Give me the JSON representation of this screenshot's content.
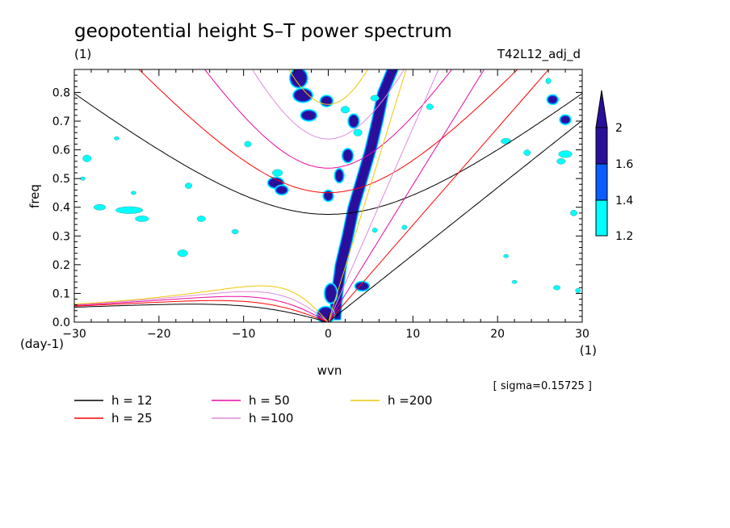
{
  "chart_data": {
    "type": "heatmap",
    "title": "geopotential height S–T power spectrum",
    "subtitle_left": "(1)",
    "subtitle_right": "T42L12_adj_d",
    "xlabel": "wvn",
    "ylabel": "freq",
    "x_unit": "(1)",
    "y_unit": "(day-1)",
    "xlim": [
      -30,
      30
    ],
    "ylim": [
      0,
      0.88
    ],
    "x_ticks": [
      -30,
      -20,
      -10,
      0,
      10,
      20,
      30
    ],
    "y_ticks": [
      0,
      0.1,
      0.2,
      0.3,
      0.4,
      0.5,
      0.6,
      0.7,
      0.8
    ],
    "x_tick_labels": [
      "−30",
      "−20",
      "−10",
      "0",
      "10",
      "20",
      "30"
    ],
    "y_tick_labels": [
      "0.0",
      "0.1",
      "0.2",
      "0.3",
      "0.4",
      "0.5",
      "0.6",
      "0.7",
      "0.8"
    ],
    "sigma_note": "[ sigma=0.15725 ]",
    "colorbar": {
      "levels": [
        1.2,
        1.4,
        1.6,
        2
      ],
      "labels": [
        "1.2",
        "1.4",
        "1.6",
        "2"
      ],
      "colors": [
        "#00ffff",
        "#0b5dff",
        "#2a0f9a"
      ]
    },
    "dispersion_curves": [
      {
        "name": "h = 12",
        "h": 12,
        "color": "#000000"
      },
      {
        "name": "h = 25",
        "h": 25,
        "color": "#ff0000"
      },
      {
        "name": "h = 50",
        "h": 50,
        "color": "#e60aa0"
      },
      {
        "name": "h =100",
        "h": 100,
        "color": "#dc8cdc"
      },
      {
        "name": "h =200",
        "h": 200,
        "color": "#f0c800"
      }
    ],
    "features": [
      {
        "kind": "kelvin_ridge",
        "level": 2,
        "points": [
          [
            0.8,
            0.01
          ],
          [
            1.0,
            0.09
          ],
          [
            1.5,
            0.2
          ],
          [
            2.3,
            0.3
          ],
          [
            3.0,
            0.4
          ],
          [
            4.0,
            0.5
          ],
          [
            5.0,
            0.6
          ],
          [
            5.8,
            0.7
          ],
          [
            6.5,
            0.8
          ],
          [
            7.6,
            0.88
          ]
        ],
        "width": 1.2
      },
      {
        "kind": "blob",
        "level": 2,
        "x": -0.3,
        "y": 0.025,
        "rx": 0.9,
        "ry": 0.025
      },
      {
        "kind": "blob",
        "level": 2,
        "x": 0.3,
        "y": 0.1,
        "rx": 0.6,
        "ry": 0.03
      },
      {
        "kind": "blob",
        "level": 2,
        "x": 4.0,
        "y": 0.125,
        "rx": 0.7,
        "ry": 0.012
      },
      {
        "kind": "blob",
        "level": 2,
        "x": -3.5,
        "y": 0.85,
        "rx": 0.9,
        "ry": 0.03
      },
      {
        "kind": "blob",
        "level": 2,
        "x": -3.0,
        "y": 0.79,
        "rx": 1.0,
        "ry": 0.02
      },
      {
        "kind": "blob",
        "level": 2,
        "x": -0.2,
        "y": 0.77,
        "rx": 0.6,
        "ry": 0.015
      },
      {
        "kind": "blob",
        "level": 2,
        "x": -2.3,
        "y": 0.72,
        "rx": 0.8,
        "ry": 0.015
      },
      {
        "kind": "blob",
        "level": 2,
        "x": 3.0,
        "y": 0.7,
        "rx": 0.5,
        "ry": 0.02
      },
      {
        "kind": "blob",
        "level": 2,
        "x": 2.3,
        "y": 0.58,
        "rx": 0.5,
        "ry": 0.02
      },
      {
        "kind": "blob",
        "level": 2,
        "x": 1.3,
        "y": 0.51,
        "rx": 0.4,
        "ry": 0.02
      },
      {
        "kind": "blob",
        "level": 2,
        "x": 0.0,
        "y": 0.44,
        "rx": 0.45,
        "ry": 0.015
      },
      {
        "kind": "blob",
        "level": 2,
        "x": -6.2,
        "y": 0.485,
        "rx": 0.8,
        "ry": 0.015
      },
      {
        "kind": "blob",
        "level": 2,
        "x": -5.5,
        "y": 0.46,
        "rx": 0.6,
        "ry": 0.012
      },
      {
        "kind": "blob",
        "level": 2,
        "x": 26.5,
        "y": 0.775,
        "rx": 0.5,
        "ry": 0.012
      },
      {
        "kind": "blob",
        "level": 2,
        "x": 28.0,
        "y": 0.705,
        "rx": 0.5,
        "ry": 0.012
      },
      {
        "kind": "blob",
        "level": 1.2,
        "x": -23.5,
        "y": 0.39,
        "rx": 1.6,
        "ry": 0.012
      },
      {
        "kind": "blob",
        "level": 1.2,
        "x": -22.0,
        "y": 0.36,
        "rx": 0.8,
        "ry": 0.01
      },
      {
        "kind": "blob",
        "level": 1.2,
        "x": -27.0,
        "y": 0.4,
        "rx": 0.7,
        "ry": 0.01
      },
      {
        "kind": "blob",
        "level": 1.2,
        "x": -28.5,
        "y": 0.57,
        "rx": 0.5,
        "ry": 0.012
      },
      {
        "kind": "blob",
        "level": 1.2,
        "x": -17.2,
        "y": 0.24,
        "rx": 0.6,
        "ry": 0.012
      },
      {
        "kind": "blob",
        "level": 1.2,
        "x": -16.5,
        "y": 0.475,
        "rx": 0.4,
        "ry": 0.01
      },
      {
        "kind": "blob",
        "level": 1.2,
        "x": -6.0,
        "y": 0.52,
        "rx": 0.6,
        "ry": 0.012
      },
      {
        "kind": "blob",
        "level": 1.2,
        "x": -9.5,
        "y": 0.62,
        "rx": 0.4,
        "ry": 0.01
      },
      {
        "kind": "blob",
        "level": 1.2,
        "x": -11.0,
        "y": 0.315,
        "rx": 0.4,
        "ry": 0.008
      },
      {
        "kind": "blob",
        "level": 1.2,
        "x": -15.0,
        "y": 0.36,
        "rx": 0.5,
        "ry": 0.01
      },
      {
        "kind": "blob",
        "level": 1.2,
        "x": 2.0,
        "y": 0.74,
        "rx": 0.5,
        "ry": 0.012
      },
      {
        "kind": "blob",
        "level": 1.2,
        "x": 3.5,
        "y": 0.66,
        "rx": 0.5,
        "ry": 0.012
      },
      {
        "kind": "blob",
        "level": 1.2,
        "x": 5.5,
        "y": 0.78,
        "rx": 0.5,
        "ry": 0.01
      },
      {
        "kind": "blob",
        "level": 1.2,
        "x": 12.0,
        "y": 0.75,
        "rx": 0.4,
        "ry": 0.01
      },
      {
        "kind": "blob",
        "level": 1.2,
        "x": 21.0,
        "y": 0.63,
        "rx": 0.6,
        "ry": 0.01
      },
      {
        "kind": "blob",
        "level": 1.2,
        "x": 23.5,
        "y": 0.59,
        "rx": 0.4,
        "ry": 0.01
      },
      {
        "kind": "blob",
        "level": 1.2,
        "x": 26.0,
        "y": 0.84,
        "rx": 0.3,
        "ry": 0.01
      },
      {
        "kind": "blob",
        "level": 1.2,
        "x": 28.0,
        "y": 0.585,
        "rx": 0.8,
        "ry": 0.012
      },
      {
        "kind": "blob",
        "level": 1.2,
        "x": 27.5,
        "y": 0.56,
        "rx": 0.5,
        "ry": 0.01
      },
      {
        "kind": "blob",
        "level": 1.2,
        "x": 29.0,
        "y": 0.38,
        "rx": 0.4,
        "ry": 0.01
      },
      {
        "kind": "blob",
        "level": 1.2,
        "x": 27.0,
        "y": 0.12,
        "rx": 0.4,
        "ry": 0.008
      },
      {
        "kind": "blob",
        "level": 1.2,
        "x": 29.5,
        "y": 0.11,
        "rx": 0.3,
        "ry": 0.008
      },
      {
        "kind": "blob",
        "level": 1.2,
        "x": 22.0,
        "y": 0.14,
        "rx": 0.3,
        "ry": 0.006
      },
      {
        "kind": "blob",
        "level": 1.2,
        "x": 21.0,
        "y": 0.23,
        "rx": 0.3,
        "ry": 0.006
      },
      {
        "kind": "blob",
        "level": 1.2,
        "x": 5.5,
        "y": 0.32,
        "rx": 0.3,
        "ry": 0.008
      },
      {
        "kind": "blob",
        "level": 1.2,
        "x": 9.0,
        "y": 0.33,
        "rx": 0.3,
        "ry": 0.008
      },
      {
        "kind": "blob",
        "level": 1.2,
        "x": -23.0,
        "y": 0.45,
        "rx": 0.3,
        "ry": 0.006
      },
      {
        "kind": "blob",
        "level": 1.2,
        "x": -25.0,
        "y": 0.64,
        "rx": 0.3,
        "ry": 0.006
      },
      {
        "kind": "blob",
        "level": 1.2,
        "x": -29.0,
        "y": 0.5,
        "rx": 0.3,
        "ry": 0.006
      }
    ]
  }
}
